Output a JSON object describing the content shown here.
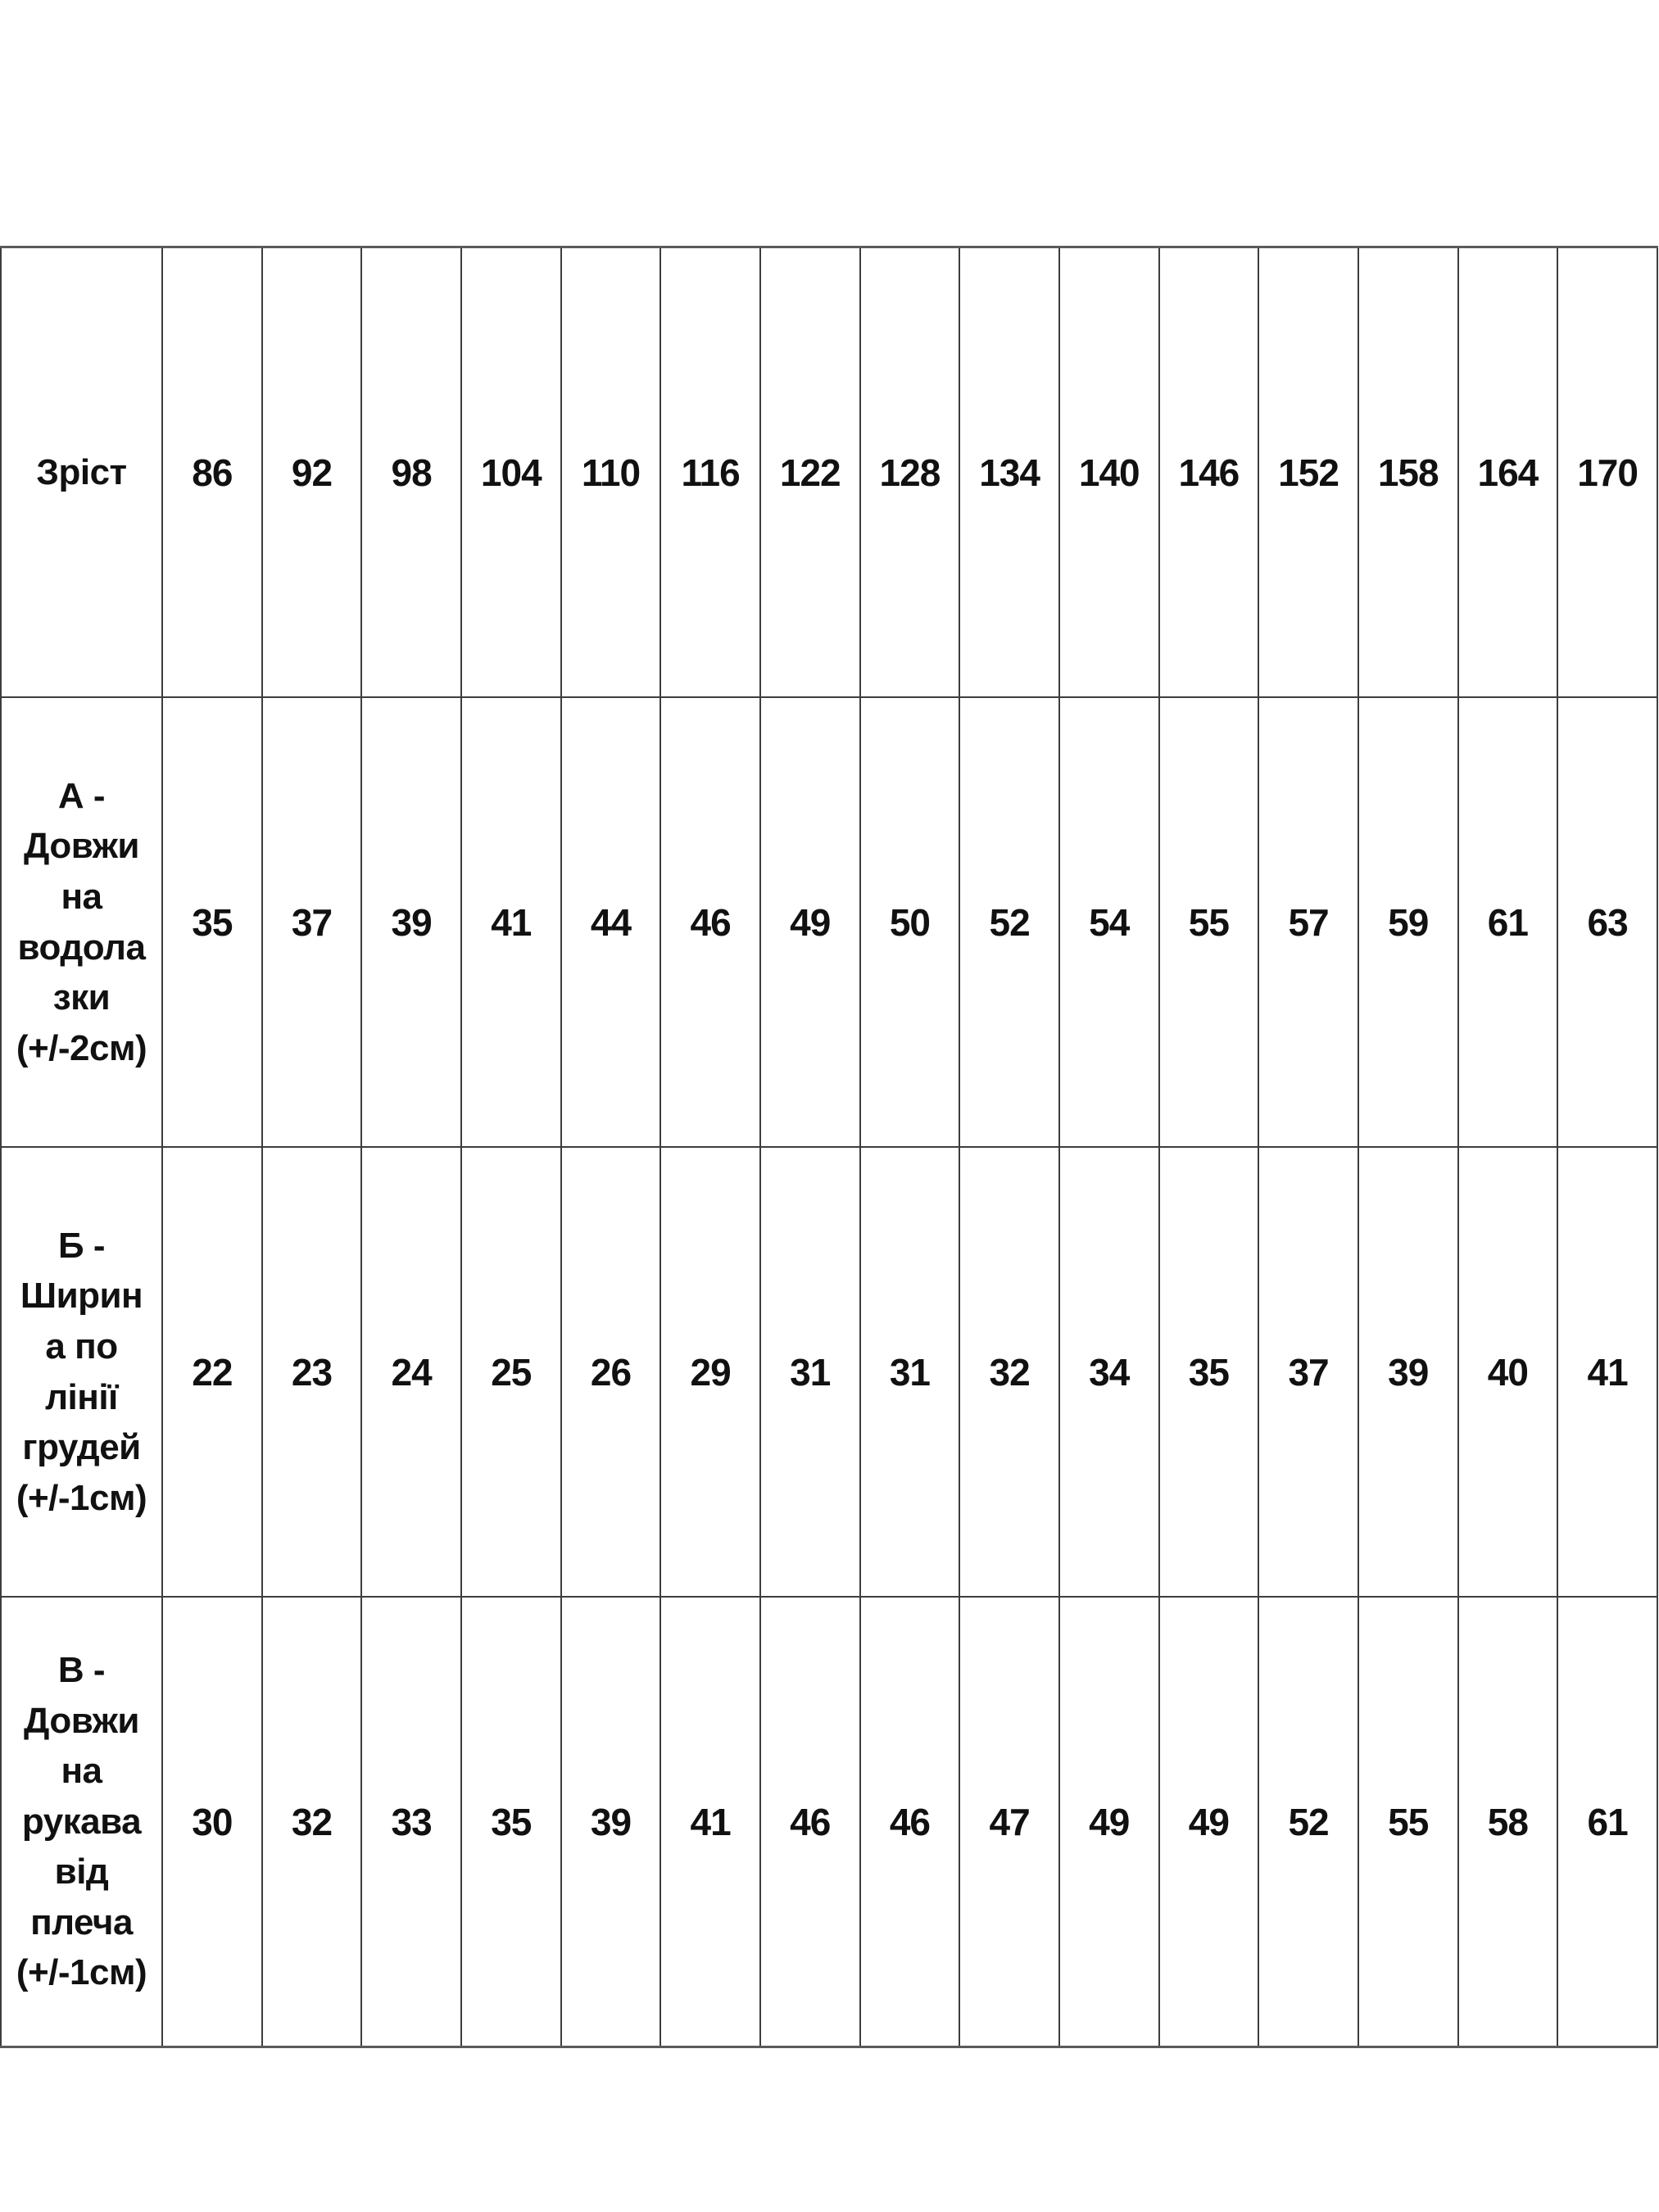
{
  "table": {
    "background": "#ffffff",
    "text_color": "#111111",
    "border_color": "#3d3d3d",
    "rows": [
      {
        "label": "Зріст",
        "values": [
          "86",
          "92",
          "98",
          "104",
          "110",
          "116",
          "122",
          "128",
          "134",
          "140",
          "146",
          "152",
          "158",
          "164",
          "170"
        ]
      },
      {
        "label": "А -\nДовжи\nна\nводола\nзки\n(+/-2см)",
        "values": [
          "35",
          "37",
          "39",
          "41",
          "44",
          "46",
          "49",
          "50",
          "52",
          "54",
          "55",
          "57",
          "59",
          "61",
          "63"
        ]
      },
      {
        "label": "Б -\nШирин\nа по\nлінії\nгрудей\n(+/-1см)",
        "values": [
          "22",
          "23",
          "24",
          "25",
          "26",
          "29",
          "31",
          "31",
          "32",
          "34",
          "35",
          "37",
          "39",
          "40",
          "41"
        ]
      },
      {
        "label": "В -\nДовжи\nна\nрукава\nвід\nплеча\n(+/-1см)",
        "values": [
          "30",
          "32",
          "33",
          "35",
          "39",
          "41",
          "46",
          "46",
          "47",
          "49",
          "49",
          "52",
          "55",
          "58",
          "61"
        ]
      }
    ]
  }
}
